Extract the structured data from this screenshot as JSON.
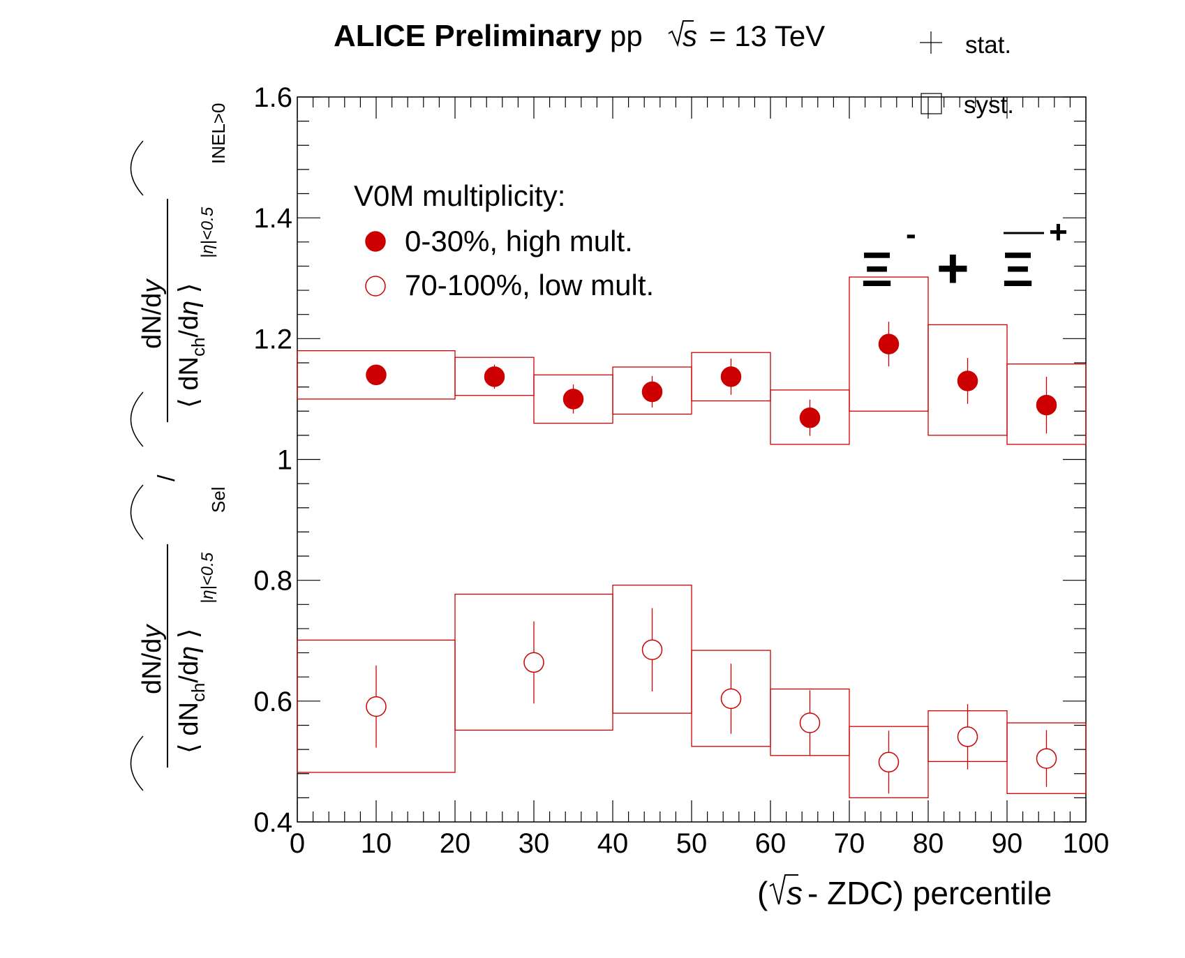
{
  "header": {
    "experiment": "ALICE Preliminary",
    "system": "pp",
    "energy_suffix": "= 13 TeV"
  },
  "uncertainty_legend": {
    "stat_label": "stat.",
    "syst_label": "syst."
  },
  "legend": {
    "title": "V0M multiplicity:",
    "entries": [
      "0-30%, high mult.",
      "70-100%, low mult."
    ]
  },
  "particle_label": {
    "xi": "Ξ",
    "minus_superscript": "-",
    "plus_sign": "+",
    "plus_superscript": "+"
  },
  "colors": {
    "series": "#cc0000",
    "axis": "#000000"
  },
  "chart_data": {
    "type": "scatter",
    "xlabel": "(√s - ZDC) percentile",
    "ylabel": "(dN/dy / ⟨dNch/dη⟩|η|<0.5)Sel / (dN/dy / ⟨dNch/dη⟩|η|<0.5)INEL>0",
    "xlim": [
      0,
      100
    ],
    "ylim": [
      0.4,
      1.6
    ],
    "x_ticks": [
      "0",
      "10",
      "20",
      "30",
      "40",
      "50",
      "60",
      "70",
      "80",
      "90",
      "100"
    ],
    "y_ticks": [
      "0.4",
      "0.6",
      "0.8",
      "1",
      "1.2",
      "1.4",
      "1.6"
    ],
    "series": [
      {
        "name": "0-30%, high mult.",
        "marker": "filled-circle",
        "points": [
          {
            "x": 10,
            "bin": [
              0,
              20
            ],
            "y": 1.14,
            "stat": 0.004,
            "syst_low": 1.1,
            "syst_high": 1.18
          },
          {
            "x": 25,
            "bin": [
              20,
              30
            ],
            "y": 1.137,
            "stat": 0.02,
            "syst_low": 1.106,
            "syst_high": 1.169
          },
          {
            "x": 35,
            "bin": [
              30,
              40
            ],
            "y": 1.1,
            "stat": 0.024,
            "syst_low": 1.06,
            "syst_high": 1.14
          },
          {
            "x": 45,
            "bin": [
              40,
              50
            ],
            "y": 1.112,
            "stat": 0.026,
            "syst_low": 1.075,
            "syst_high": 1.153
          },
          {
            "x": 55,
            "bin": [
              50,
              60
            ],
            "y": 1.137,
            "stat": 0.03,
            "syst_low": 1.097,
            "syst_high": 1.177
          },
          {
            "x": 65,
            "bin": [
              60,
              70
            ],
            "y": 1.069,
            "stat": 0.03,
            "syst_low": 1.025,
            "syst_high": 1.115
          },
          {
            "x": 75,
            "bin": [
              70,
              80
            ],
            "y": 1.191,
            "stat": 0.037,
            "syst_low": 1.08,
            "syst_high": 1.302
          },
          {
            "x": 85,
            "bin": [
              80,
              90
            ],
            "y": 1.13,
            "stat": 0.038,
            "syst_low": 1.04,
            "syst_high": 1.223
          },
          {
            "x": 95,
            "bin": [
              90,
              100
            ],
            "y": 1.09,
            "stat": 0.047,
            "syst_low": 1.025,
            "syst_high": 1.158
          }
        ]
      },
      {
        "name": "70-100%, low mult.",
        "marker": "open-circle",
        "points": [
          {
            "x": 10,
            "bin": [
              0,
              20
            ],
            "y": 0.591,
            "stat": 0.068,
            "syst_low": 0.482,
            "syst_high": 0.701
          },
          {
            "x": 30,
            "bin": [
              20,
              40
            ],
            "y": 0.664,
            "stat": 0.068,
            "syst_low": 0.552,
            "syst_high": 0.777
          },
          {
            "x": 45,
            "bin": [
              40,
              50
            ],
            "y": 0.685,
            "stat": 0.069,
            "syst_low": 0.58,
            "syst_high": 0.792
          },
          {
            "x": 55,
            "bin": [
              50,
              60
            ],
            "y": 0.604,
            "stat": 0.058,
            "syst_low": 0.525,
            "syst_high": 0.684
          },
          {
            "x": 65,
            "bin": [
              60,
              70
            ],
            "y": 0.564,
            "stat": 0.054,
            "syst_low": 0.51,
            "syst_high": 0.62
          },
          {
            "x": 75,
            "bin": [
              70,
              80
            ],
            "y": 0.499,
            "stat": 0.052,
            "syst_low": 0.44,
            "syst_high": 0.558
          },
          {
            "x": 85,
            "bin": [
              80,
              90
            ],
            "y": 0.541,
            "stat": 0.054,
            "syst_low": 0.5,
            "syst_high": 0.584
          },
          {
            "x": 95,
            "bin": [
              90,
              100
            ],
            "y": 0.505,
            "stat": 0.047,
            "syst_low": 0.447,
            "syst_high": 0.564
          }
        ]
      }
    ],
    "grid": false,
    "legend_position": "top-left"
  }
}
